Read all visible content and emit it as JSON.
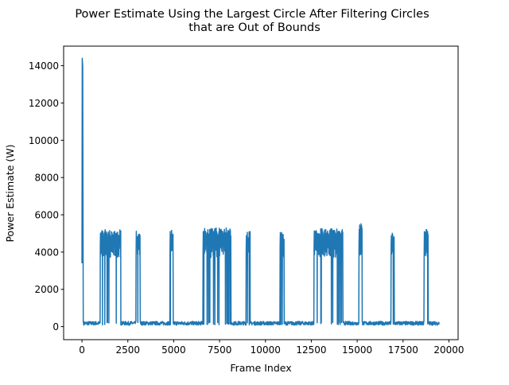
{
  "chart_data": {
    "type": "line",
    "title_line1": "Power Estimate Using the Largest Circle After Filtering Circles",
    "title_line2": "that are Out of Bounds",
    "xlabel": "Frame Index",
    "ylabel": "Power Estimate (W)",
    "xlim": [
      -1000,
      20500
    ],
    "ylim": [
      -700,
      15050
    ],
    "x_ticks": [
      0,
      2500,
      5000,
      7500,
      10000,
      12500,
      15000,
      17500,
      20000
    ],
    "y_ticks": [
      0,
      2000,
      4000,
      6000,
      8000,
      10000,
      12000,
      14000
    ],
    "x_tick_labels": [
      "0",
      "2500",
      "5000",
      "7500",
      "10000",
      "12500",
      "15000",
      "17500",
      "20000"
    ],
    "y_tick_labels": [
      "0",
      "2000",
      "4000",
      "6000",
      "8000",
      "10000",
      "12000",
      "14000"
    ],
    "grid": false,
    "legend": "none",
    "series_color": "#1f77b4",
    "baseline": {
      "x_start": 0,
      "x_end": 19450,
      "low": 80,
      "high": 280
    },
    "initial_spike": {
      "x": 0,
      "start_value": 3400,
      "peak": 14400
    },
    "bursts": [
      {
        "x_start": 1000,
        "x_end": 2100,
        "peak": 5200
      },
      {
        "x_start": 2950,
        "x_end": 3150,
        "peak": 5150
      },
      {
        "x_start": 4800,
        "x_end": 4950,
        "peak": 5300
      },
      {
        "x_start": 6600,
        "x_end": 8100,
        "peak": 5300
      },
      {
        "x_start": 8950,
        "x_end": 9150,
        "peak": 5100
      },
      {
        "x_start": 10800,
        "x_end": 11000,
        "peak": 5050
      },
      {
        "x_start": 12650,
        "x_end": 14200,
        "peak": 5250
      },
      {
        "x_start": 15100,
        "x_end": 15250,
        "peak": 5550
      },
      {
        "x_start": 16850,
        "x_end": 17000,
        "peak": 5100
      },
      {
        "x_start": 18650,
        "x_end": 18850,
        "peak": 5250
      }
    ]
  }
}
